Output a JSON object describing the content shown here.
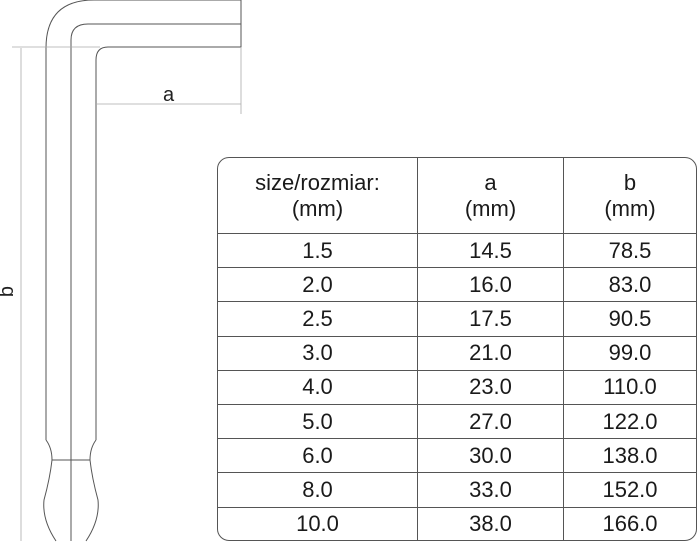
{
  "drawing": {
    "dimension_a_label": "a",
    "dimension_b_label": "b"
  },
  "table": {
    "headers": [
      {
        "line1": "size/rozmiar:",
        "line2": "(mm)"
      },
      {
        "line1": "a",
        "line2": "(mm)"
      },
      {
        "line1": "b",
        "line2": "(mm)"
      }
    ],
    "rows": [
      [
        "1.5",
        "14.5",
        "78.5"
      ],
      [
        "2.0",
        "16.0",
        "83.0"
      ],
      [
        "2.5",
        "17.5",
        "90.5"
      ],
      [
        "3.0",
        "21.0",
        "99.0"
      ],
      [
        "4.0",
        "23.0",
        "110.0"
      ],
      [
        "5.0",
        "27.0",
        "122.0"
      ],
      [
        "6.0",
        "30.0",
        "138.0"
      ],
      [
        "8.0",
        "33.0",
        "152.0"
      ],
      [
        "10.0",
        "38.0",
        "166.0"
      ]
    ]
  }
}
